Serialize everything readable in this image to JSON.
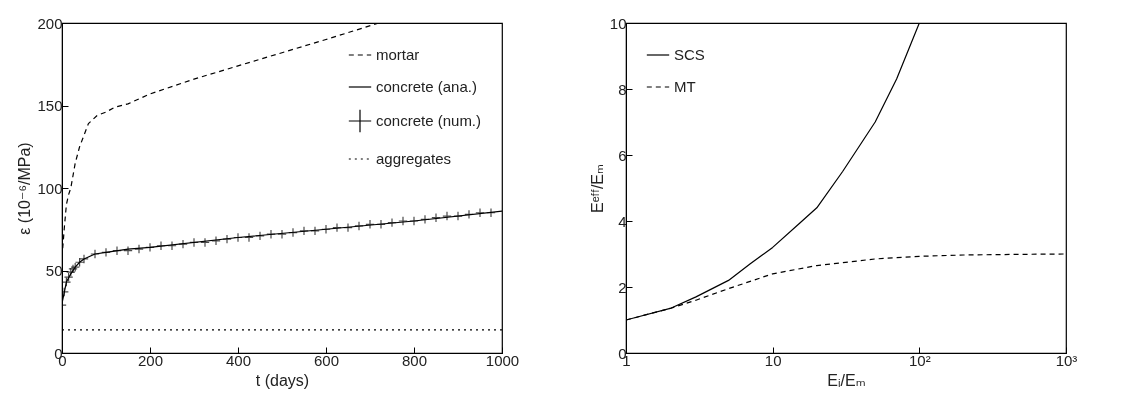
{
  "chart_data": [
    {
      "type": "line",
      "xlabel": "t (days)",
      "ylabel": "ε (10⁻⁶/MPa)",
      "xlim": [
        0,
        1000
      ],
      "ylim": [
        0,
        200
      ],
      "xticks": [
        0,
        200,
        400,
        600,
        800,
        1000
      ],
      "yticks": [
        0,
        50,
        100,
        150,
        200
      ],
      "grid": false,
      "legend": "top right",
      "series": [
        {
          "name": "mortar",
          "color": "#000000",
          "line_style": "dashed",
          "x": [
            0,
            5,
            10,
            15,
            20,
            30,
            40,
            60,
            80,
            100,
            120,
            150,
            200,
            300,
            400,
            500,
            600,
            720
          ],
          "values": [
            58,
            75,
            90,
            96,
            100,
            115,
            125,
            139,
            144,
            146,
            149,
            151,
            157,
            166,
            174,
            182,
            190,
            200
          ]
        },
        {
          "name": "concrete (ana.)",
          "color": "#000000",
          "line_style": "solid",
          "x": [
            0,
            10,
            20,
            30,
            40,
            50,
            75,
            100,
            150,
            200,
            400,
            600,
            800,
            1000
          ],
          "values": [
            30,
            43,
            48,
            52,
            55,
            57,
            60,
            61,
            63,
            64,
            70,
            75,
            80,
            86
          ]
        },
        {
          "name": "concrete (num.)",
          "type": "scatter",
          "marker": "cross",
          "color": "#000000",
          "x": [
            0,
            5,
            10,
            15,
            20,
            25,
            30,
            40,
            50,
            75,
            100,
            125,
            150,
            175,
            200,
            225,
            250,
            275,
            300,
            325,
            350,
            375,
            400,
            425,
            450,
            475,
            500,
            525,
            550,
            575,
            600,
            625,
            650,
            675,
            700,
            725,
            750,
            775,
            800,
            825,
            850,
            875,
            900,
            925,
            950,
            975
          ],
          "values": [
            29,
            37,
            43,
            46,
            49,
            51,
            52,
            55,
            57,
            60,
            61,
            62,
            62,
            63,
            64,
            65,
            65,
            66,
            67,
            67,
            68,
            69,
            70,
            70,
            71,
            72,
            72,
            73,
            74,
            74,
            75,
            76,
            76,
            77,
            78,
            78,
            79,
            80,
            80,
            81,
            82,
            83,
            83,
            84,
            85,
            85
          ]
        },
        {
          "name": "aggregates",
          "color": "#000000",
          "line_style": "dotted",
          "x": [
            0,
            1000
          ],
          "values": [
            14,
            14
          ]
        }
      ]
    },
    {
      "type": "line",
      "xlabel": "Eᵢ/Eₘ",
      "ylabel": "Eᵉᶠᶠ/Eₘ",
      "log": "x",
      "xlim": [
        1,
        1000
      ],
      "ylim": [
        0,
        10
      ],
      "xticks": [
        1,
        10,
        {
          "value": 100,
          "label": "10²"
        },
        {
          "value": 1000,
          "label": "10³"
        }
      ],
      "yticks": [
        0,
        2,
        4,
        6,
        8,
        10
      ],
      "grid": false,
      "legend": "top left",
      "series": [
        {
          "name": "SCS",
          "color": "#000000",
          "line_style": "solid",
          "x": [
            1,
            2,
            3,
            5,
            7,
            10,
            15,
            20,
            30,
            50,
            70,
            100
          ],
          "values": [
            1,
            1.35,
            1.7,
            2.2,
            2.7,
            3.2,
            3.9,
            4.4,
            5.5,
            7,
            8.3,
            10
          ]
        },
        {
          "name": "MT",
          "color": "#000000",
          "line_style": "dashed",
          "x": [
            1,
            2,
            3,
            5,
            10,
            20,
            50,
            100,
            200,
            500,
            1000
          ],
          "values": [
            1,
            1.35,
            1.6,
            1.95,
            2.4,
            2.65,
            2.85,
            2.93,
            2.97,
            2.99,
            3
          ]
        }
      ]
    }
  ]
}
